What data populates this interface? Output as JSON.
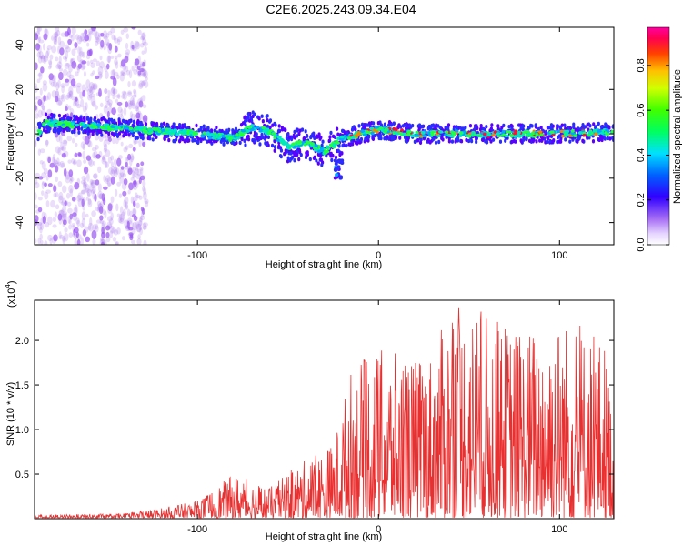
{
  "title": "C2E6.2025.243.09.34.E04",
  "chart_data": [
    {
      "type": "heatmap",
      "xlabel": "Height of straight line (km)",
      "ylabel": "Frequency (Hz)",
      "xlim": [
        -190,
        130
      ],
      "ylim": [
        -50,
        48
      ],
      "xticks": [
        -100,
        0,
        100
      ],
      "xtick_labels": [
        "-100",
        "0",
        "100"
      ],
      "yticks": [
        -40,
        -20,
        0,
        20,
        40
      ],
      "ytick_labels": [
        "-40",
        "-20",
        "0",
        "20",
        "40"
      ],
      "colorbar": {
        "label": "Normalized spectral amplitude",
        "range": [
          0,
          0.97
        ],
        "ticks": [
          0.0,
          0.2,
          0.4,
          0.6,
          0.8
        ],
        "tick_labels": [
          "0.0",
          "0.2",
          "0.4",
          "0.6",
          "0.8"
        ]
      },
      "ridge": [
        {
          "x": -185,
          "f": 5
        },
        {
          "x": -150,
          "f": 3
        },
        {
          "x": -120,
          "f": 1
        },
        {
          "x": -100,
          "f": 0
        },
        {
          "x": -80,
          "f": -2
        },
        {
          "x": -70,
          "f": 3
        },
        {
          "x": -60,
          "f": 1
        },
        {
          "x": -50,
          "f": -6
        },
        {
          "x": -40,
          "f": -4
        },
        {
          "x": -30,
          "f": -8
        },
        {
          "x": -20,
          "f": -2
        },
        {
          "x": -10,
          "f": 0
        },
        {
          "x": 0,
          "f": 2
        },
        {
          "x": 20,
          "f": 0
        },
        {
          "x": 50,
          "f": 0
        },
        {
          "x": 80,
          "f": 0
        },
        {
          "x": 100,
          "f": 0
        },
        {
          "x": 130,
          "f": 1
        }
      ]
    },
    {
      "type": "line",
      "xlabel": "Height of straight line (km)",
      "ylabel": "SNR (10 * v/v)",
      "multiplier_label": "(x10",
      "multiplier_exp": "4",
      "multiplier_close": ")",
      "xlim": [
        -190,
        130
      ],
      "ylim": [
        0,
        2.45
      ],
      "xticks": [
        -100,
        0,
        100
      ],
      "xtick_labels": [
        "-100",
        "0",
        "100"
      ],
      "yticks": [
        0.5,
        1.0,
        1.5,
        2.0
      ],
      "ytick_labels": [
        "0.5",
        "1.0",
        "1.5",
        "2.0"
      ],
      "color": "#e83030",
      "envelope": [
        {
          "x": -190,
          "y": 0.04
        },
        {
          "x": -140,
          "y": 0.06
        },
        {
          "x": -120,
          "y": 0.12
        },
        {
          "x": -100,
          "y": 0.2
        },
        {
          "x": -80,
          "y": 0.5
        },
        {
          "x": -60,
          "y": 0.35
        },
        {
          "x": -45,
          "y": 0.6
        },
        {
          "x": -25,
          "y": 0.85
        },
        {
          "x": -15,
          "y": 1.7
        },
        {
          "x": 0,
          "y": 1.9
        },
        {
          "x": 20,
          "y": 1.8
        },
        {
          "x": 30,
          "y": 1.9
        },
        {
          "x": 42,
          "y": 2.45
        },
        {
          "x": 60,
          "y": 2.3
        },
        {
          "x": 80,
          "y": 2.1
        },
        {
          "x": 95,
          "y": 2.3
        },
        {
          "x": 110,
          "y": 2.2
        },
        {
          "x": 125,
          "y": 2.0
        },
        {
          "x": 130,
          "y": 1.2
        }
      ]
    }
  ]
}
